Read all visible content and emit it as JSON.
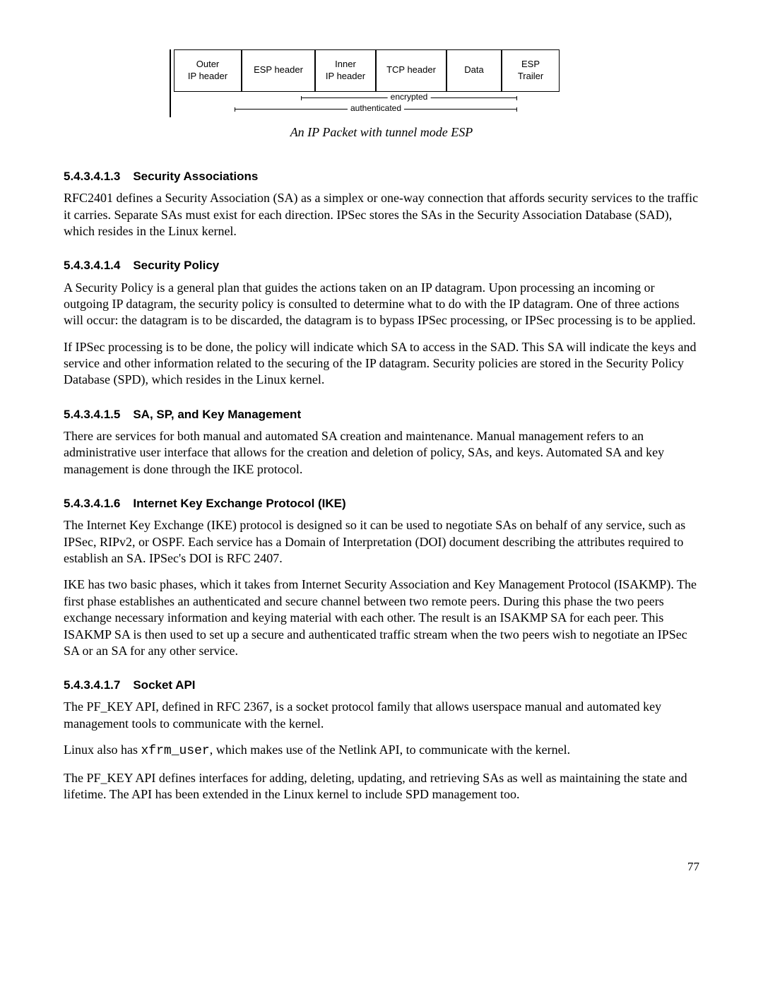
{
  "diagram": {
    "cells": [
      "Outer\nIP header",
      "ESP header",
      "Inner\nIP header",
      "TCP header",
      "Data",
      "ESP\nTrailer"
    ],
    "widths": [
      86,
      94,
      76,
      90,
      68,
      72
    ],
    "encrypted_label": "encrypted",
    "authenticated_label": "authenticated"
  },
  "caption": "An IP Packet with tunnel mode ESP",
  "s1": {
    "num": "5.4.3.4.1.3",
    "title": "Security Associations",
    "p1": "RFC2401 defines a Security Association (SA) as a simplex or one-way connection that affords security services to the traffic it carries.  Separate SAs must exist for each direction.  IPSec stores the SAs in the Security Association Database (SAD), which resides in the Linux kernel."
  },
  "s2": {
    "num": "5.4.3.4.1.4",
    "title": "Security Policy",
    "p1": "A Security Policy is a general plan that guides the actions taken on an IP datagram.  Upon processing an incoming or outgoing IP datagram, the security policy is consulted to determine what to do with the IP datagram.  One of three actions will occur: the datagram is to be discarded, the datagram is to bypass IPSec processing, or IPSec processing is to be applied.",
    "p2": "If IPSec processing is to be done, the policy will indicate which SA to access in the SAD.  This SA will indicate the keys and service and other information related to the securing of the IP datagram.  Security policies are stored in the Security Policy Database (SPD), which resides in the Linux kernel."
  },
  "s3": {
    "num": "5.4.3.4.1.5",
    "title": "SA, SP, and Key Management",
    "p1": "There are services for both manual and automated SA creation and maintenance.  Manual management refers to an administrative user interface that allows for the creation and deletion of policy, SAs, and keys.  Automated SA and key management is done through the IKE protocol."
  },
  "s4": {
    "num": "5.4.3.4.1.6",
    "title": "Internet Key Exchange Protocol (IKE)",
    "p1": "The Internet Key Exchange (IKE) protocol is designed so it can be used to negotiate SAs on behalf of any service, such as IPSec, RIPv2, or OSPF.  Each service has a Domain of Interpretation (DOI) document describing the attributes required to establish an SA.  IPSec's DOI is RFC 2407.",
    "p2": "IKE has two basic phases, which it takes from Internet Security Association and Key Management Protocol (ISAKMP).  The first phase establishes an authenticated and secure channel between two remote peers.  During this phase the two peers exchange necessary information and keying material with each other.  The result is an ISAKMP SA for each peer. This ISAKMP SA is then used to set up a secure and authenticated traffic stream when the two peers wish to negotiate an IPSec SA or an SA for any other service."
  },
  "s5": {
    "num": "5.4.3.4.1.7",
    "title": "Socket API",
    "p1": "The PF_KEY API, defined in RFC 2367, is a socket protocol family that allows userspace manual and automated key management tools to communicate with the kernel.",
    "p2a": "Linux also has ",
    "p2code": "xfrm_user",
    "p2b": ", which makes use of the Netlink API, to communicate with the kernel.",
    "p3": "The PF_KEY API defines interfaces for adding, deleting, updating, and retrieving SAs as well as maintaining the state and lifetime. The API has been extended in the Linux kernel to include SPD management too."
  },
  "page_number": "77"
}
